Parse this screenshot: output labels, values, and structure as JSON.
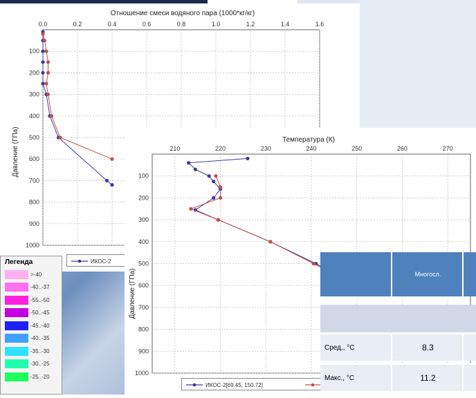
{
  "chart_data": [
    {
      "type": "line",
      "title": "Отношение смеси водяного пара (1000*кг/кг)",
      "xlabel": "",
      "ylabel": "Давление (ГПа)",
      "xlim": [
        0,
        1.6
      ],
      "ylim": [
        1000,
        0
      ],
      "x_ticks": [
        "0.0",
        "0.2",
        "0.4",
        "0.6",
        "0.8",
        "1.0",
        "1.2",
        "1.4",
        "1.6"
      ],
      "y_ticks": [
        "100",
        "200",
        "300",
        "400",
        "500",
        "600",
        "700",
        "800",
        "900",
        "1000"
      ],
      "grid": true,
      "legend_position": "bottom",
      "series": [
        {
          "name": "ИКОС-2",
          "color": "#3b3b9a",
          "x": [
            0.0,
            0.0,
            0.0,
            0.0,
            0.0,
            0.0,
            0.02,
            0.04,
            0.09,
            0.37,
            0.4
          ],
          "y": [
            10,
            50,
            100,
            150,
            200,
            250,
            300,
            400,
            500,
            700,
            720
          ]
        },
        {
          "name": "",
          "color": "#c0504d",
          "x": [
            0.0,
            0.01,
            0.02,
            0.03,
            0.03,
            0.02,
            0.03,
            0.05,
            0.1,
            0.4
          ],
          "y": [
            20,
            50,
            100,
            150,
            200,
            250,
            300,
            400,
            500,
            600
          ]
        }
      ]
    },
    {
      "type": "line",
      "title": "Температура (К)",
      "xlabel": "",
      "ylabel": "Давление (ГПа)",
      "xlim": [
        205,
        275
      ],
      "ylim": [
        1000,
        0
      ],
      "x_ticks": [
        "210",
        "220",
        "230",
        "240",
        "250",
        "260",
        "270"
      ],
      "y_ticks": [
        "100",
        "200",
        "300",
        "400",
        "500",
        "600",
        "700",
        "800",
        "900",
        "1000"
      ],
      "grid": true,
      "legend_position": "bottom",
      "series": [
        {
          "name": "ИКОС-2[69.45, 150.72]",
          "color": "#3b3b9a",
          "x": [
            226,
            213,
            214.5,
            217.5,
            218.5,
            220,
            218.5,
            214.5,
            219.5,
            231,
            241,
            248
          ],
          "y": [
            20,
            40,
            70,
            100,
            125,
            160,
            200,
            255,
            300,
            400,
            500,
            580
          ]
        },
        {
          "name": "",
          "color": "#c0504d",
          "x": [
            219,
            220,
            220,
            213.5,
            219.5,
            231,
            240.5,
            248
          ],
          "y": [
            100,
            150,
            200,
            250,
            300,
            400,
            500,
            580
          ]
        }
      ]
    }
  ],
  "legend_panel": {
    "title": "Легенда",
    "items": [
      {
        "label": ">-40",
        "color": "#ffb0f0"
      },
      {
        "label": "-40..-37",
        "color": "#ff70f0"
      },
      {
        "label": "-55..-50",
        "color": "#ff20e0"
      },
      {
        "label": "-50..-45",
        "color": "#c000e0"
      },
      {
        "label": "-45..-40",
        "color": "#2020ff"
      },
      {
        "label": "-40..-35",
        "color": "#3fa0ff"
      },
      {
        "label": "-35..-30",
        "color": "#30e0ff"
      },
      {
        "label": "-30..-25",
        "color": "#20ffb0"
      },
      {
        "label": "-25..-20",
        "color": "#20ff60"
      }
    ]
  },
  "table": {
    "header_col": "Многосл.",
    "rows": [
      {
        "label": "Сред., °C",
        "value": "8.3"
      },
      {
        "label": "Макс., °C",
        "value": "11.2"
      }
    ]
  }
}
